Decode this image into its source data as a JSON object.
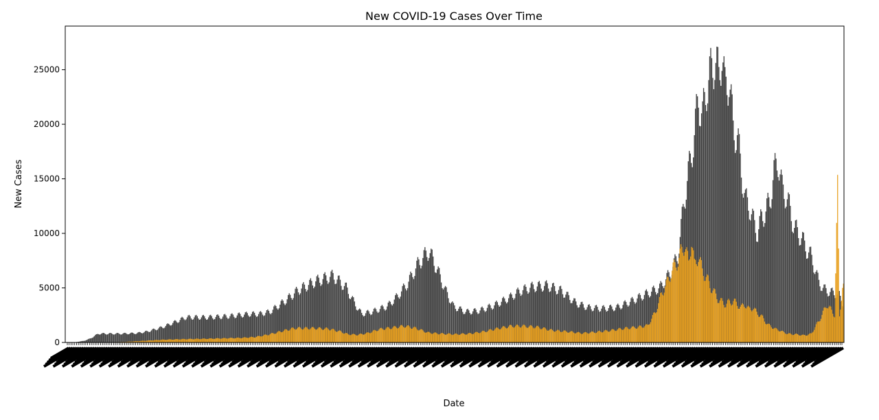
{
  "chart_data": {
    "type": "bar",
    "title": "New COVID-19 Cases Over Time",
    "xlabel": "Date",
    "ylabel": "New Cases",
    "ylim": [
      0,
      29000
    ],
    "yticks": [
      0,
      5000,
      10000,
      15000,
      20000,
      25000
    ],
    "grid": false,
    "legend": "none",
    "x_tick_count": 420,
    "colors": {
      "total": "#3f3f3f",
      "highlight": "#e8a020"
    },
    "series": [
      {
        "knots": [
          [
            0,
            0
          ],
          [
            6,
            0
          ],
          [
            10,
            30
          ],
          [
            18,
            150
          ],
          [
            24,
            350
          ],
          [
            32,
            800
          ],
          [
            55,
            800
          ],
          [
            70,
            850
          ],
          [
            80,
            1000
          ],
          [
            95,
            1400
          ],
          [
            108,
            1900
          ],
          [
            118,
            2300
          ],
          [
            140,
            2300
          ],
          [
            160,
            2400
          ],
          [
            180,
            2600
          ],
          [
            190,
            2600
          ],
          [
            200,
            2800
          ],
          [
            215,
            3800
          ],
          [
            228,
            4800
          ],
          [
            245,
            5600
          ],
          [
            262,
            6100
          ],
          [
            275,
            5000
          ],
          [
            283,
            3600
          ],
          [
            290,
            2600
          ],
          [
            300,
            2800
          ],
          [
            315,
            3300
          ],
          [
            325,
            4200
          ],
          [
            335,
            5400
          ],
          [
            346,
            7300
          ],
          [
            356,
            8400
          ],
          [
            364,
            6700
          ],
          [
            372,
            4800
          ],
          [
            380,
            3300
          ],
          [
            392,
            2800
          ],
          [
            405,
            2900
          ],
          [
            420,
            3400
          ],
          [
            435,
            4100
          ],
          [
            445,
            4700
          ],
          [
            458,
            5100
          ],
          [
            472,
            5200
          ],
          [
            486,
            4700
          ],
          [
            500,
            3600
          ],
          [
            512,
            3200
          ],
          [
            525,
            3100
          ],
          [
            540,
            3200
          ],
          [
            555,
            3800
          ],
          [
            568,
            4400
          ],
          [
            582,
            5000
          ],
          [
            592,
            6300
          ],
          [
            600,
            8000
          ],
          [
            606,
            13000
          ],
          [
            612,
            16600
          ],
          [
            616,
            19000
          ],
          [
            620,
            22500
          ],
          [
            624,
            20500
          ],
          [
            628,
            23500
          ],
          [
            632,
            24600
          ],
          [
            636,
            26100
          ],
          [
            640,
            24200
          ],
          [
            643,
            27000
          ],
          [
            646,
            23000
          ],
          [
            650,
            24400
          ],
          [
            654,
            19500
          ],
          [
            658,
            19000
          ],
          [
            662,
            15800
          ],
          [
            666,
            13000
          ],
          [
            670,
            12500
          ],
          [
            674,
            11000
          ],
          [
            678,
            10000
          ],
          [
            682,
            11500
          ],
          [
            686,
            12000
          ],
          [
            690,
            13000
          ],
          [
            694,
            15500
          ],
          [
            698,
            16800
          ],
          [
            702,
            14000
          ],
          [
            706,
            13500
          ],
          [
            710,
            12000
          ],
          [
            714,
            10500
          ],
          [
            718,
            10000
          ],
          [
            722,
            9400
          ],
          [
            726,
            8500
          ],
          [
            730,
            8000
          ],
          [
            734,
            6800
          ],
          [
            738,
            5500
          ],
          [
            742,
            5000
          ],
          [
            746,
            4700
          ],
          [
            750,
            4600
          ],
          [
            754,
            4500
          ],
          [
            758,
            4300
          ],
          [
            762,
            3500
          ]
        ],
        "weekly_amplitude": 0.1,
        "bars": 763
      },
      {
        "knots": [
          [
            0,
            0
          ],
          [
            35,
            0
          ],
          [
            60,
            50
          ],
          [
            80,
            150
          ],
          [
            100,
            250
          ],
          [
            120,
            300
          ],
          [
            150,
            350
          ],
          [
            180,
            420
          ],
          [
            195,
            500
          ],
          [
            210,
            750
          ],
          [
            225,
            1100
          ],
          [
            235,
            1300
          ],
          [
            255,
            1300
          ],
          [
            270,
            1250
          ],
          [
            282,
            1000
          ],
          [
            290,
            750
          ],
          [
            300,
            700
          ],
          [
            310,
            850
          ],
          [
            322,
            1200
          ],
          [
            335,
            1350
          ],
          [
            348,
            1500
          ],
          [
            360,
            1300
          ],
          [
            372,
            900
          ],
          [
            385,
            800
          ],
          [
            400,
            750
          ],
          [
            415,
            800
          ],
          [
            430,
            1000
          ],
          [
            445,
            1300
          ],
          [
            458,
            1500
          ],
          [
            470,
            1500
          ],
          [
            485,
            1400
          ],
          [
            500,
            1100
          ],
          [
            515,
            1000
          ],
          [
            530,
            850
          ],
          [
            545,
            950
          ],
          [
            560,
            1100
          ],
          [
            575,
            1300
          ],
          [
            588,
            1400
          ],
          [
            598,
            1550
          ],
          [
            606,
            2800
          ],
          [
            612,
            4400
          ],
          [
            618,
            5500
          ],
          [
            624,
            6800
          ],
          [
            628,
            7300
          ],
          [
            632,
            8200
          ],
          [
            636,
            9000
          ],
          [
            640,
            7200
          ],
          [
            643,
            9500
          ],
          [
            646,
            7000
          ],
          [
            650,
            8000
          ],
          [
            654,
            6500
          ],
          [
            658,
            6000
          ],
          [
            662,
            5200
          ],
          [
            666,
            4600
          ],
          [
            670,
            4000
          ],
          [
            674,
            3700
          ],
          [
            678,
            3500
          ],
          [
            682,
            3700
          ],
          [
            686,
            3800
          ],
          [
            690,
            3500
          ],
          [
            694,
            3200
          ],
          [
            698,
            3500
          ],
          [
            702,
            3000
          ],
          [
            706,
            3200
          ],
          [
            710,
            2700
          ],
          [
            714,
            2500
          ],
          [
            718,
            2000
          ],
          [
            722,
            1600
          ],
          [
            726,
            1400
          ],
          [
            730,
            1200
          ],
          [
            734,
            1100
          ],
          [
            738,
            900
          ],
          [
            742,
            800
          ],
          [
            746,
            750
          ],
          [
            750,
            750
          ],
          [
            754,
            700
          ],
          [
            758,
            650
          ],
          [
            762,
            700
          ],
          [
            766,
            800
          ],
          [
            770,
            1400
          ],
          [
            774,
            2000
          ],
          [
            778,
            2700
          ],
          [
            782,
            3500
          ],
          [
            786,
            3000
          ],
          [
            790,
            2500
          ],
          [
            793,
            14000
          ],
          [
            795,
            2500
          ],
          [
            798,
            5000
          ]
        ],
        "weekly_amplitude": 0.1,
        "bars": 800
      }
    ]
  }
}
